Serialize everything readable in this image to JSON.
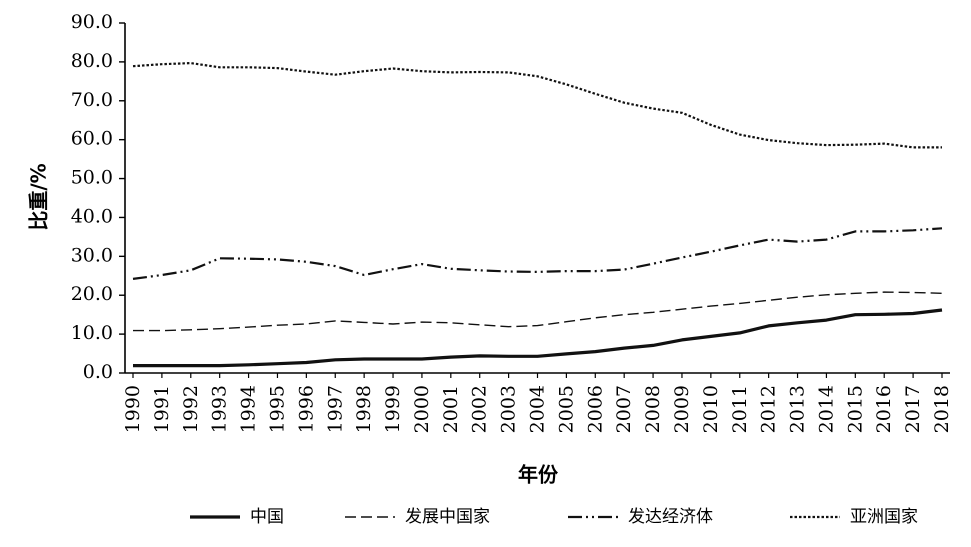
{
  "chart_data": {
    "type": "line",
    "xlabel": "年份",
    "ylabel": "比重/%",
    "ylim": [
      0,
      90
    ],
    "y_ticks": [
      "0.0",
      "10.0",
      "20.0",
      "30.0",
      "40.0",
      "50.0",
      "60.0",
      "70.0",
      "80.0",
      "90.0"
    ],
    "categories": [
      "1990",
      "1991",
      "1992",
      "1993",
      "1994",
      "1995",
      "1996",
      "1997",
      "1998",
      "1999",
      "2000",
      "2001",
      "2002",
      "2003",
      "2004",
      "2005",
      "2006",
      "2007",
      "2008",
      "2009",
      "2010",
      "2011",
      "2012",
      "2013",
      "2014",
      "2015",
      "2016",
      "2017",
      "2018"
    ],
    "grid": false,
    "legend_position": "bottom",
    "series": [
      {
        "name": "中国",
        "style": "solid-thick",
        "color": "#111111",
        "values": [
          1.9,
          1.9,
          1.9,
          1.9,
          2.1,
          2.4,
          2.7,
          3.4,
          3.6,
          3.6,
          3.6,
          4.1,
          4.4,
          4.3,
          4.3,
          4.9,
          5.5,
          6.4,
          7.1,
          8.5,
          9.4,
          10.3,
          12.1,
          12.9,
          13.6,
          15.0,
          15.1,
          15.3,
          16.2
        ]
      },
      {
        "name": "发展中国家",
        "style": "long-dash",
        "color": "#111111",
        "values": [
          10.9,
          10.9,
          11.1,
          11.4,
          11.8,
          12.3,
          12.6,
          13.4,
          13.0,
          12.6,
          13.1,
          12.9,
          12.4,
          11.9,
          12.2,
          13.2,
          14.2,
          15.0,
          15.6,
          16.4,
          17.2,
          17.9,
          18.7,
          19.5,
          20.1,
          20.5,
          20.8,
          20.7,
          20.5
        ]
      },
      {
        "name": "发达经济体",
        "style": "dash-dot-dot",
        "color": "#111111",
        "values": [
          24.2,
          25.2,
          26.4,
          29.5,
          29.4,
          29.2,
          28.6,
          27.5,
          25.2,
          26.7,
          28.0,
          26.8,
          26.4,
          26.1,
          26.0,
          26.2,
          26.2,
          26.6,
          28.1,
          29.7,
          31.2,
          32.8,
          34.3,
          33.8,
          34.3,
          36.4,
          36.4,
          36.7,
          37.2
        ]
      },
      {
        "name": "亚洲国家",
        "style": "dotted",
        "color": "#111111",
        "values": [
          78.9,
          79.4,
          79.7,
          78.6,
          78.6,
          78.4,
          77.5,
          76.7,
          77.6,
          78.3,
          77.6,
          77.3,
          77.4,
          77.3,
          76.3,
          74.2,
          71.8,
          69.5,
          68.0,
          66.9,
          63.8,
          61.3,
          59.9,
          59.1,
          58.6,
          58.7,
          59.0,
          58.0,
          58.0
        ]
      }
    ]
  }
}
